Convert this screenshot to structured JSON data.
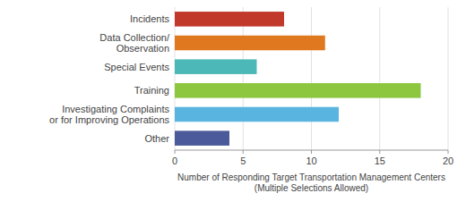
{
  "chart_data": {
    "type": "bar",
    "orientation": "horizontal",
    "categories": [
      "Other",
      "Investigating Complaints\nor  for Improving Operations",
      "Training",
      "Special Events",
      "Data Collection/\nObservation",
      "Incidents"
    ],
    "values": [
      4,
      12,
      18,
      6,
      11,
      8
    ],
    "colors": [
      "#4a5a9a",
      "#5ab4e0",
      "#8dc63f",
      "#4cb8b8",
      "#e07820",
      "#c0392b"
    ],
    "xlabel": "Number of Responding Target Transportation Management Centers\n(Multiple Selections Allowed)",
    "xlim": [
      0,
      20
    ],
    "xticks": [
      0,
      5,
      10,
      15,
      20
    ],
    "grid": true
  }
}
